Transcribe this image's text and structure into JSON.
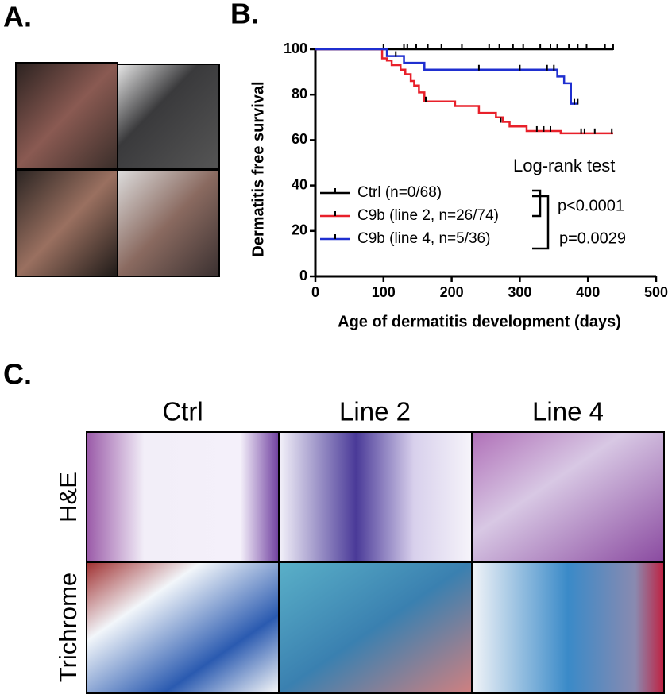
{
  "panel_labels": [
    "A.",
    "B.",
    "C."
  ],
  "histology": {
    "columns": [
      "Ctrl",
      "Line 2",
      "Line 4"
    ],
    "rows": [
      "H&E",
      "Trichrome"
    ]
  },
  "chart_data": {
    "type": "line",
    "step": true,
    "xlabel": "Age of dermatitis development (days)",
    "ylabel": "Dermatitis free survival",
    "xlim": [
      0,
      500
    ],
    "ylim": [
      0,
      100
    ],
    "xticks": [
      0,
      100,
      200,
      300,
      400,
      500
    ],
    "yticks": [
      0,
      20,
      40,
      60,
      80,
      100
    ],
    "annotations": [
      "Log-rank test",
      "p<0.0001",
      "p=0.0029"
    ],
    "series": [
      {
        "name": "Ctrl (n=0/68)",
        "color": "#000000",
        "x": [
          0,
          437
        ],
        "values": [
          100,
          100
        ],
        "censored": {
          "x": [
            100,
            130,
            135,
            148,
            165,
            185,
            215,
            255,
            270,
            290,
            305,
            330,
            345,
            355,
            372,
            385,
            398,
            425,
            437
          ],
          "values": [
            100,
            100,
            100,
            100,
            100,
            100,
            100,
            100,
            100,
            100,
            100,
            100,
            100,
            100,
            100,
            100,
            100,
            100,
            100
          ]
        }
      },
      {
        "name": "C9b (line 2, n=26/74)",
        "color": "#e8202a",
        "x": [
          0,
          98,
          98,
          105,
          105,
          112,
          112,
          125,
          125,
          132,
          132,
          140,
          140,
          145,
          145,
          152,
          152,
          160,
          160,
          205,
          205,
          240,
          240,
          265,
          265,
          275,
          275,
          285,
          285,
          310,
          310,
          360,
          360,
          437
        ],
        "values": [
          100,
          100,
          96,
          96,
          95,
          95,
          93,
          93,
          91,
          91,
          89,
          89,
          86,
          86,
          84,
          84,
          81,
          81,
          77,
          77,
          75,
          75,
          72,
          72,
          70,
          70,
          68,
          68,
          66,
          66,
          64,
          64,
          63,
          63
        ],
        "censored": {
          "x": [
            162,
            272,
            325,
            335,
            345,
            390,
            395,
            410,
            435
          ],
          "values": [
            77,
            68,
            64,
            64,
            64,
            63,
            63,
            63,
            63
          ]
        }
      },
      {
        "name": "C9b (line 4, n=5/36)",
        "color": "#1f2fd0",
        "x": [
          0,
          105,
          105,
          130,
          130,
          160,
          160,
          355,
          355,
          365,
          365,
          375,
          375,
          385
        ],
        "values": [
          100,
          100,
          97,
          97,
          94,
          94,
          91,
          91,
          88,
          88,
          85,
          85,
          76,
          76
        ],
        "censored": {
          "x": [
            118,
            240,
            300,
            340,
            350,
            380,
            385
          ],
          "values": [
            97,
            91,
            91,
            91,
            91,
            76,
            76
          ]
        }
      }
    ]
  }
}
